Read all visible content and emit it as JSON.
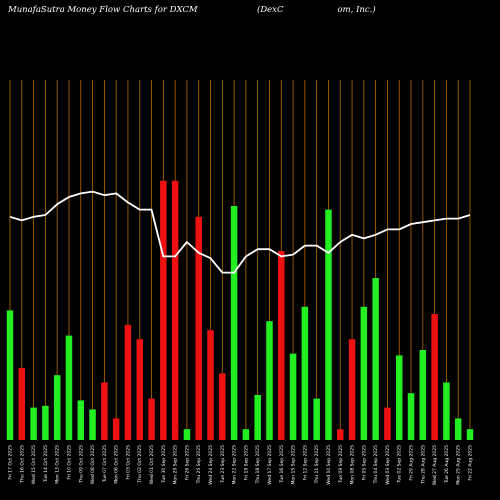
{
  "chart_data": {
    "type": "bar",
    "title_left": "MunafaSutra  Money Flow  Charts for DXCM",
    "title_right": "(DexC                    om, Inc.) ",
    "colors": {
      "background": "#000000",
      "grid": "#b86a00",
      "up": "#22ee22",
      "down": "#ee1111",
      "line": "#ffffff"
    },
    "ylim": [
      0,
      100
    ],
    "line_ylim": [
      0,
      100
    ],
    "categories": [
      "Fri 17 Oct 2025",
      "Thu 16 Oct 2025",
      "Wed 15 Oct 2025",
      "Tue 14 Oct 2025",
      "Mon 13 Oct 2025",
      "Fri 10 Oct 2025",
      "Thu 09 Oct 2025",
      "Wed 08 Oct 2025",
      "Tue 07 Oct 2025",
      "Mon 06 Oct 2025",
      "Fri 03 Oct 2025",
      "Thu 02 Oct 2025",
      "Wed 01 Oct 2025",
      "Tue 30 Sep 2025",
      "Mon 29 Sep 2025",
      "Fri 26 Sep 2025",
      "Thu 25 Sep 2025",
      "Wed 24 Sep 2025",
      "Tue 23 Sep 2025",
      "Mon 22 Sep 2025",
      "Fri 19 Sep 2025",
      "Thu 18 Sep 2025",
      "Wed 17 Sep 2025",
      "Tue 16 Sep 2025",
      "Mon 15 Sep 2025",
      "Fri 12 Sep 2025",
      "Thu 11 Sep 2025",
      "Wed 10 Sep 2025",
      "Tue 09 Sep 2025",
      "Mon 08 Sep 2025",
      "Fri 05 Sep 2025",
      "Thu 04 Sep 2025",
      "Wed 03 Sep 2025",
      "Tue 02 Sep 2025",
      "Fri 29 Aug 2025",
      "Thu 28 Aug 2025",
      "Wed 27 Aug 2025",
      "Tue 26 Aug 2025",
      "Mon 25 Aug 2025",
      "Fri 22 Aug 2025"
    ],
    "values": [
      36,
      20,
      9,
      9.5,
      18,
      29,
      11,
      8.5,
      16,
      6,
      32,
      28,
      11.5,
      72,
      72,
      3,
      62,
      30.5,
      18.5,
      65,
      3,
      12.5,
      33,
      52.5,
      24,
      37,
      11.5,
      64,
      3,
      28,
      37,
      45,
      9,
      23.5,
      13,
      25,
      35,
      16,
      6,
      3
    ],
    "directions": [
      "up",
      "down",
      "up",
      "up",
      "up",
      "up",
      "up",
      "up",
      "down",
      "down",
      "down",
      "down",
      "down",
      "down",
      "down",
      "up",
      "down",
      "down",
      "down",
      "up",
      "up",
      "up",
      "up",
      "down",
      "up",
      "up",
      "up",
      "up",
      "down",
      "down",
      "up",
      "up",
      "down",
      "up",
      "up",
      "up",
      "down",
      "up",
      "up",
      "up"
    ],
    "line": [
      62,
      61,
      62,
      62.5,
      65.5,
      67.5,
      68.5,
      69,
      68,
      68.5,
      66,
      64,
      64,
      51,
      51,
      55,
      52,
      50.5,
      46.5,
      46.5,
      51,
      53,
      53,
      51,
      51.5,
      54,
      54,
      52,
      55,
      57,
      56,
      57,
      58.5,
      58.5,
      60,
      60.5,
      61,
      61.5,
      61.5,
      62.5
    ]
  }
}
